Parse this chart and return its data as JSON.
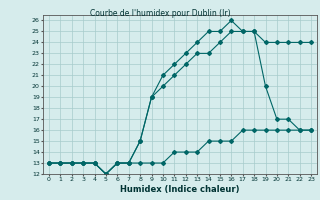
{
  "title": "Courbe de l'humidex pour Dublin (Ir)",
  "xlabel": "Humidex (Indice chaleur)",
  "bg_color": "#d6ecec",
  "grid_color": "#a8cccc",
  "line_color": "#006666",
  "xlim": [
    -0.5,
    23.5
  ],
  "ylim": [
    12,
    26.5
  ],
  "xticks": [
    0,
    1,
    2,
    3,
    4,
    5,
    6,
    7,
    8,
    9,
    10,
    11,
    12,
    13,
    14,
    15,
    16,
    17,
    18,
    19,
    20,
    21,
    22,
    23
  ],
  "yticks": [
    12,
    13,
    14,
    15,
    16,
    17,
    18,
    19,
    20,
    21,
    22,
    23,
    24,
    25,
    26
  ],
  "curve1_x": [
    0,
    1,
    2,
    3,
    4,
    5,
    6,
    7,
    8,
    9,
    10,
    11,
    12,
    13,
    14,
    15,
    16,
    17,
    18,
    19,
    20,
    21,
    22,
    23
  ],
  "curve1_y": [
    13,
    13,
    13,
    13,
    13,
    12,
    13,
    13,
    13,
    13,
    13,
    14,
    14,
    14,
    15,
    15,
    15,
    16,
    16,
    16,
    16,
    16,
    16,
    16
  ],
  "curve2_x": [
    0,
    1,
    2,
    3,
    4,
    5,
    6,
    7,
    8,
    9,
    10,
    11,
    12,
    13,
    14,
    15,
    16,
    17,
    18,
    19,
    20,
    21,
    22,
    23
  ],
  "curve2_y": [
    13,
    13,
    13,
    13,
    13,
    12,
    13,
    13,
    15,
    19,
    20,
    21,
    22,
    23,
    23,
    24,
    25,
    25,
    25,
    20,
    17,
    17,
    16,
    16
  ],
  "curve3_x": [
    0,
    1,
    2,
    3,
    4,
    5,
    6,
    7,
    8,
    9,
    10,
    11,
    12,
    13,
    14,
    15,
    16,
    17,
    18,
    19,
    20,
    21,
    22,
    23
  ],
  "curve3_y": [
    13,
    13,
    13,
    13,
    13,
    12,
    13,
    13,
    15,
    19,
    21,
    22,
    23,
    24,
    25,
    25,
    26,
    25,
    25,
    24,
    24,
    24,
    24,
    24
  ]
}
